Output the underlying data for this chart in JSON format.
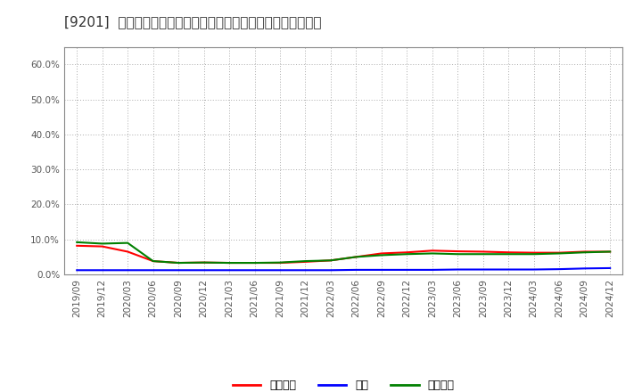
{
  "title": "[9201]  売上債権、在庫、買入債務の総資産に対する比率の推移",
  "background_color": "#ffffff",
  "grid_color": "#aaaaaa",
  "ylim": [
    0.0,
    0.65
  ],
  "yticks": [
    0.0,
    0.1,
    0.2,
    0.3,
    0.4,
    0.5,
    0.6
  ],
  "ytick_labels": [
    "0.0%",
    "10.0%",
    "20.0%",
    "30.0%",
    "40.0%",
    "50.0%",
    "60.0%"
  ],
  "x_labels": [
    "2019/09",
    "2019/12",
    "2020/03",
    "2020/06",
    "2020/09",
    "2020/12",
    "2021/03",
    "2021/06",
    "2021/09",
    "2021/12",
    "2022/03",
    "2022/06",
    "2022/09",
    "2022/12",
    "2023/03",
    "2023/06",
    "2023/09",
    "2023/12",
    "2024/03",
    "2024/06",
    "2024/09",
    "2024/12"
  ],
  "series": {
    "売上債権": {
      "color": "#ff0000",
      "values": [
        0.082,
        0.08,
        0.065,
        0.038,
        0.033,
        0.034,
        0.033,
        0.033,
        0.033,
        0.036,
        0.04,
        0.05,
        0.06,
        0.063,
        0.068,
        0.066,
        0.065,
        0.063,
        0.062,
        0.062,
        0.065,
        0.065
      ]
    },
    "在庫": {
      "color": "#0000ff",
      "values": [
        0.012,
        0.012,
        0.012,
        0.012,
        0.012,
        0.012,
        0.012,
        0.012,
        0.012,
        0.012,
        0.012,
        0.013,
        0.013,
        0.013,
        0.013,
        0.014,
        0.014,
        0.014,
        0.014,
        0.015,
        0.017,
        0.018
      ]
    },
    "買入債務": {
      "color": "#008000",
      "values": [
        0.092,
        0.088,
        0.09,
        0.038,
        0.033,
        0.034,
        0.033,
        0.033,
        0.034,
        0.038,
        0.04,
        0.05,
        0.055,
        0.058,
        0.06,
        0.058,
        0.058,
        0.058,
        0.058,
        0.06,
        0.063,
        0.065
      ]
    }
  },
  "legend_entries": [
    "売上債権",
    "在庫",
    "買入債務"
  ],
  "legend_colors": [
    "#ff0000",
    "#0000ff",
    "#008000"
  ],
  "title_fontsize": 11,
  "tick_fontsize": 7.5,
  "legend_fontsize": 9
}
